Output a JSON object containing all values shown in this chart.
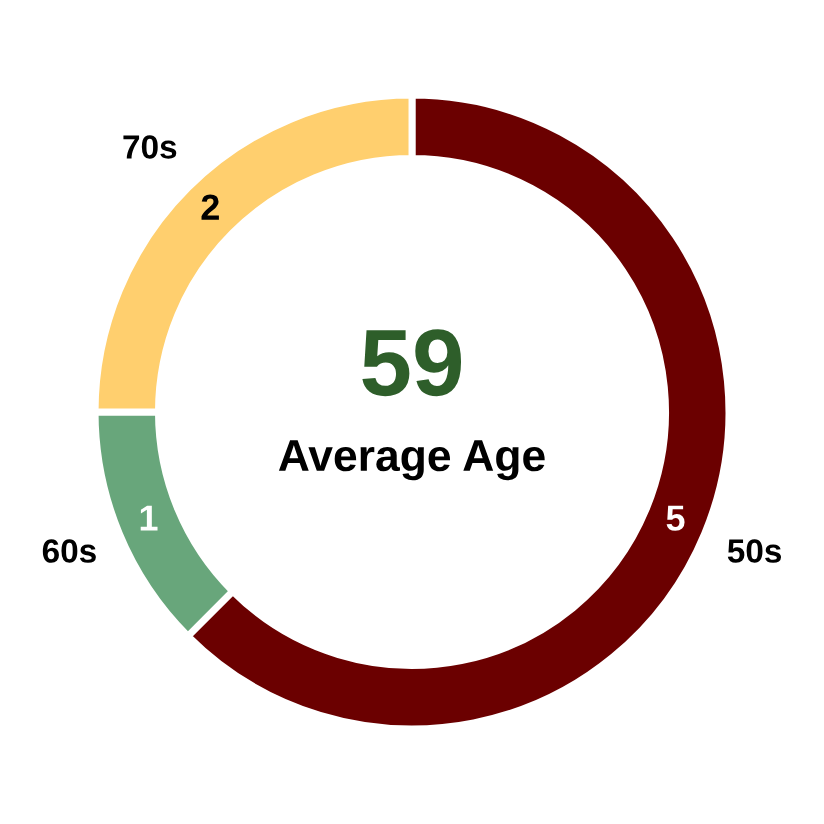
{
  "chart_data": {
    "type": "donut",
    "categories": [
      "50s",
      "60s",
      "70s"
    ],
    "values": [
      5,
      1,
      2
    ],
    "colors": [
      "#6b0000",
      "#68a67b",
      "#ffcf6e"
    ],
    "data_labels": true,
    "annotations": [
      "59",
      "Average Age"
    ]
  }
}
